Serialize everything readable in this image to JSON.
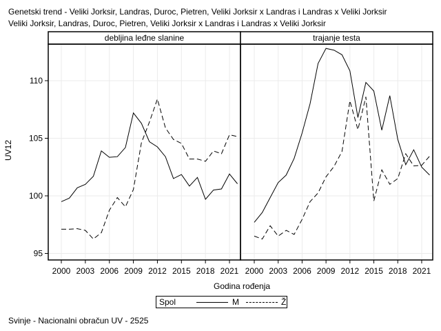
{
  "header": {
    "title_line1": "Genetski trend - Veliki Jorksir, Landras, Duroc, Pietren, Veliki Jorksir x Landras i Landras x Veliki Jorksir",
    "title_line2": "Veliki Jorksir, Landras, Duroc, Pietren, Veliki Jorksir x Landras i Landras x Veliki Jorksir"
  },
  "footer": "Svinje - Nacionalni obračun UV - 2525",
  "chart_data": {
    "type": "line",
    "ylabel": "UV12",
    "xlabel": "Godina rođenja",
    "ylim": [
      94.5,
      113
    ],
    "xlim": [
      1998.3,
      2022.5
    ],
    "yticks": [
      95,
      100,
      105,
      110
    ],
    "xticks": [
      2000,
      2003,
      2006,
      2009,
      2012,
      2015,
      2018,
      2021
    ],
    "grid": true,
    "legend": {
      "title": "Spol",
      "position": "bottom",
      "entries": [
        {
          "label": "M",
          "style": "solid"
        },
        {
          "label": "Ž",
          "style": "dashed"
        }
      ]
    },
    "x": [
      2000,
      2001,
      2002,
      2003,
      2004,
      2005,
      2006,
      2007,
      2008,
      2009,
      2010,
      2011,
      2012,
      2013,
      2014,
      2015,
      2016,
      2017,
      2018,
      2019,
      2020,
      2021,
      2022
    ],
    "panels": [
      {
        "title": "debljina leđne slanine",
        "series": [
          {
            "name": "M",
            "values": [
              99.5,
              99.8,
              100.7,
              101.0,
              101.7,
              103.9,
              103.35,
              103.4,
              104.2,
              107.2,
              106.3,
              104.7,
              104.25,
              103.4,
              101.5,
              101.85,
              100.85,
              101.6,
              99.7,
              100.5,
              100.6,
              101.9,
              101.05
            ]
          },
          {
            "name": "Ž",
            "values": [
              97.1,
              97.1,
              97.15,
              97.0,
              96.25,
              96.8,
              98.75,
              99.85,
              99.05,
              100.55,
              104.6,
              106.4,
              108.4,
              105.9,
              104.9,
              104.55,
              103.2,
              103.2,
              103.0,
              103.9,
              103.65,
              105.3,
              105.15
            ]
          }
        ]
      },
      {
        "title": "trajanje testa",
        "series": [
          {
            "name": "M",
            "values": [
              97.7,
              98.55,
              99.85,
              101.15,
              101.8,
              103.25,
              105.45,
              108.0,
              111.5,
              112.8,
              112.65,
              112.25,
              110.85,
              106.8,
              109.85,
              109.1,
              105.7,
              108.7,
              104.9,
              102.7,
              104.0,
              102.5,
              101.8
            ]
          },
          {
            "name": "Ž",
            "values": [
              96.5,
              96.25,
              97.4,
              96.5,
              97.0,
              96.65,
              97.95,
              99.5,
              100.25,
              101.65,
              102.55,
              103.85,
              108.25,
              105.75,
              108.6,
              99.55,
              102.25,
              101.0,
              101.5,
              103.65,
              102.6,
              102.65,
              103.45
            ]
          }
        ]
      }
    ]
  }
}
